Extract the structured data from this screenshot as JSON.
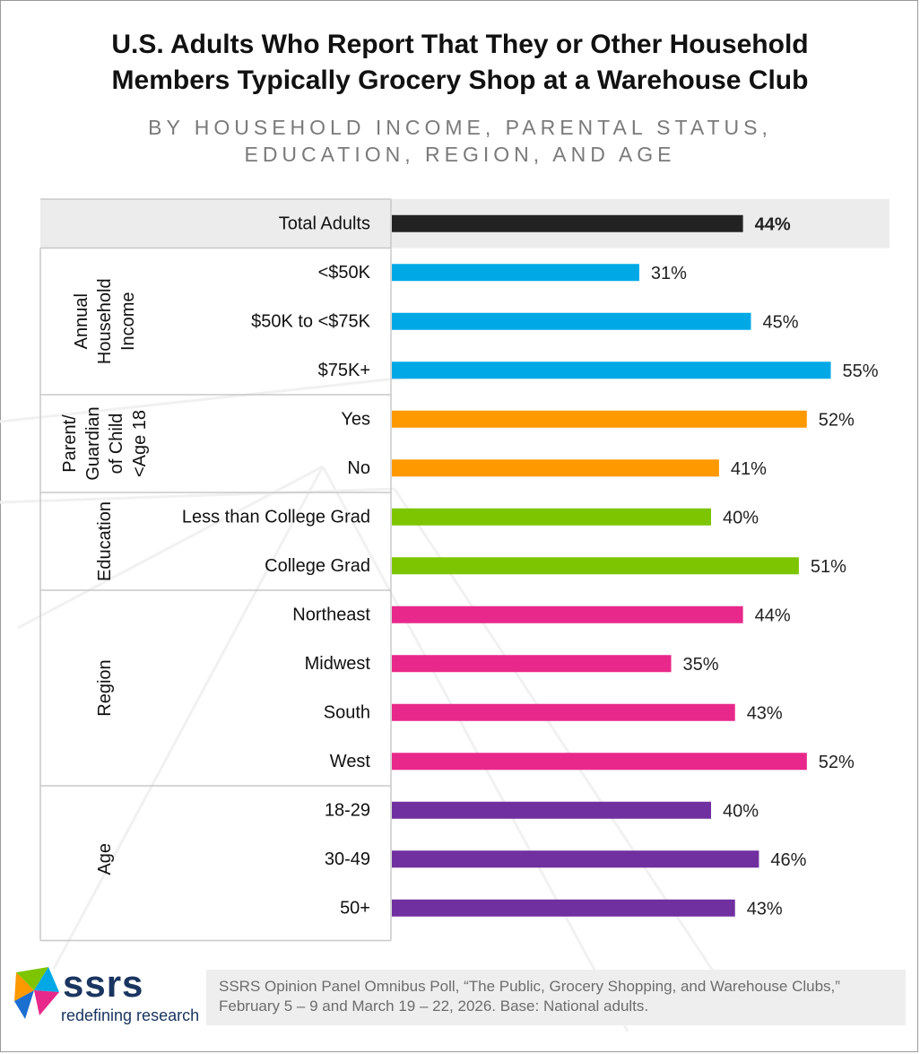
{
  "title_line1": "U.S. Adults Who Report That They or Other Household",
  "title_line2": "Members Typically Grocery Shop at a Warehouse Club",
  "subtitle_line1": "BY HOUSEHOLD INCOME, PARENTAL STATUS,",
  "subtitle_line2": "EDUCATION, REGION, AND AGE",
  "brand": {
    "name": "ssrs",
    "tagline": "redefining research"
  },
  "source": {
    "line1": "SSRS Opinion Panel Omnibus Poll, “The Public, Grocery Shopping, and Warehouse Clubs,”",
    "line2": "February 5 – 9 and March 19 – 22, 2026. Base: National adults."
  },
  "colors": {
    "total": "#222222",
    "income": "#00a9e6",
    "parent": "#ff9900",
    "education": "#7dc500",
    "region": "#e8288a",
    "age": "#7030a0",
    "band": "#ececec"
  },
  "chart_data": {
    "type": "bar",
    "orientation": "horizontal",
    "value_suffix": "%",
    "xlim": [
      0,
      100
    ],
    "groups": [
      {
        "key": "total",
        "label_lines": [],
        "items": [
          {
            "label": "Total Adults",
            "value": 44
          }
        ]
      },
      {
        "key": "income",
        "label_lines": [
          "Annual",
          "Household",
          "Income"
        ],
        "items": [
          {
            "label": "<$50K",
            "value": 31
          },
          {
            "label": "$50K to <$75K",
            "value": 45
          },
          {
            "label": "$75K+",
            "value": 55
          }
        ]
      },
      {
        "key": "parent",
        "label_lines": [
          "Parent/",
          "Guardian",
          "of Child",
          "<Age 18"
        ],
        "items": [
          {
            "label": "Yes",
            "value": 52
          },
          {
            "label": "No",
            "value": 41
          }
        ]
      },
      {
        "key": "education",
        "label_lines": [
          "Education"
        ],
        "items": [
          {
            "label": "Less than College Grad",
            "value": 40
          },
          {
            "label": "College Grad",
            "value": 51
          }
        ]
      },
      {
        "key": "region",
        "label_lines": [
          "Region"
        ],
        "items": [
          {
            "label": "Northeast",
            "value": 44
          },
          {
            "label": "Midwest",
            "value": 35
          },
          {
            "label": "South",
            "value": 43
          },
          {
            "label": "West",
            "value": 52
          }
        ]
      },
      {
        "key": "age",
        "label_lines": [
          "Age"
        ],
        "items": [
          {
            "label": "18-29",
            "value": 40
          },
          {
            "label": "30-49",
            "value": 46
          },
          {
            "label": "50+",
            "value": 43
          }
        ]
      }
    ]
  }
}
